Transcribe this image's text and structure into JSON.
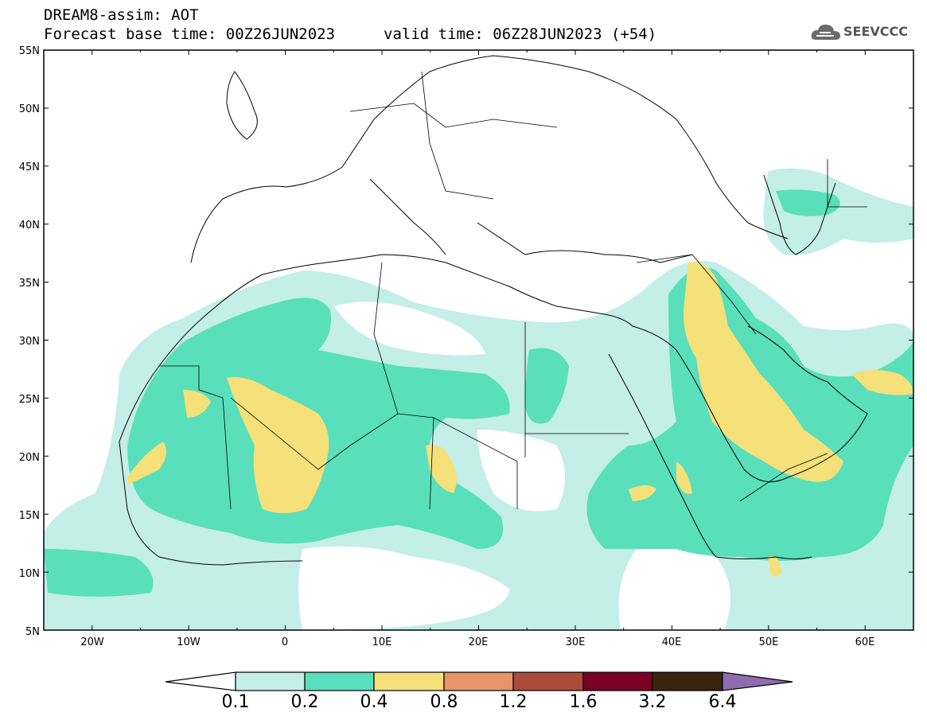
{
  "header": {
    "title": "DREAM8-assim: AOT",
    "base_time": "Forecast base time: 00Z26JUN2023",
    "valid_time": "valid time: 06Z28JUN2023 (+54)"
  },
  "logo": {
    "text": "SEEVCCC",
    "icon": "cloud-icon"
  },
  "map": {
    "lat_labels": [
      "55N",
      "50N",
      "45N",
      "40N",
      "35N",
      "30N",
      "25N",
      "20N",
      "15N",
      "10N",
      "5N"
    ],
    "lon_labels": [
      "20W",
      "10W",
      "0",
      "10E",
      "20E",
      "30E",
      "40E",
      "50E",
      "60E"
    ],
    "lon_range": [
      -25,
      65
    ],
    "lat_range": [
      5,
      55
    ]
  },
  "colorbar": {
    "labels": [
      "0.1",
      "0.2",
      "0.4",
      "0.8",
      "1.2",
      "1.6",
      "3.2",
      "6.4"
    ],
    "colors": [
      "#ffffff",
      "#c4eee8",
      "#59dfbb",
      "#f5e07a",
      "#e89469",
      "#ab4c3a",
      "#7a0023",
      "#3a2410",
      "#8f6cae"
    ]
  },
  "legend_levels": {
    "aot_low": "#c4eee8",
    "aot_mid": "#59dfbb",
    "aot_high": "#f5e07a"
  }
}
